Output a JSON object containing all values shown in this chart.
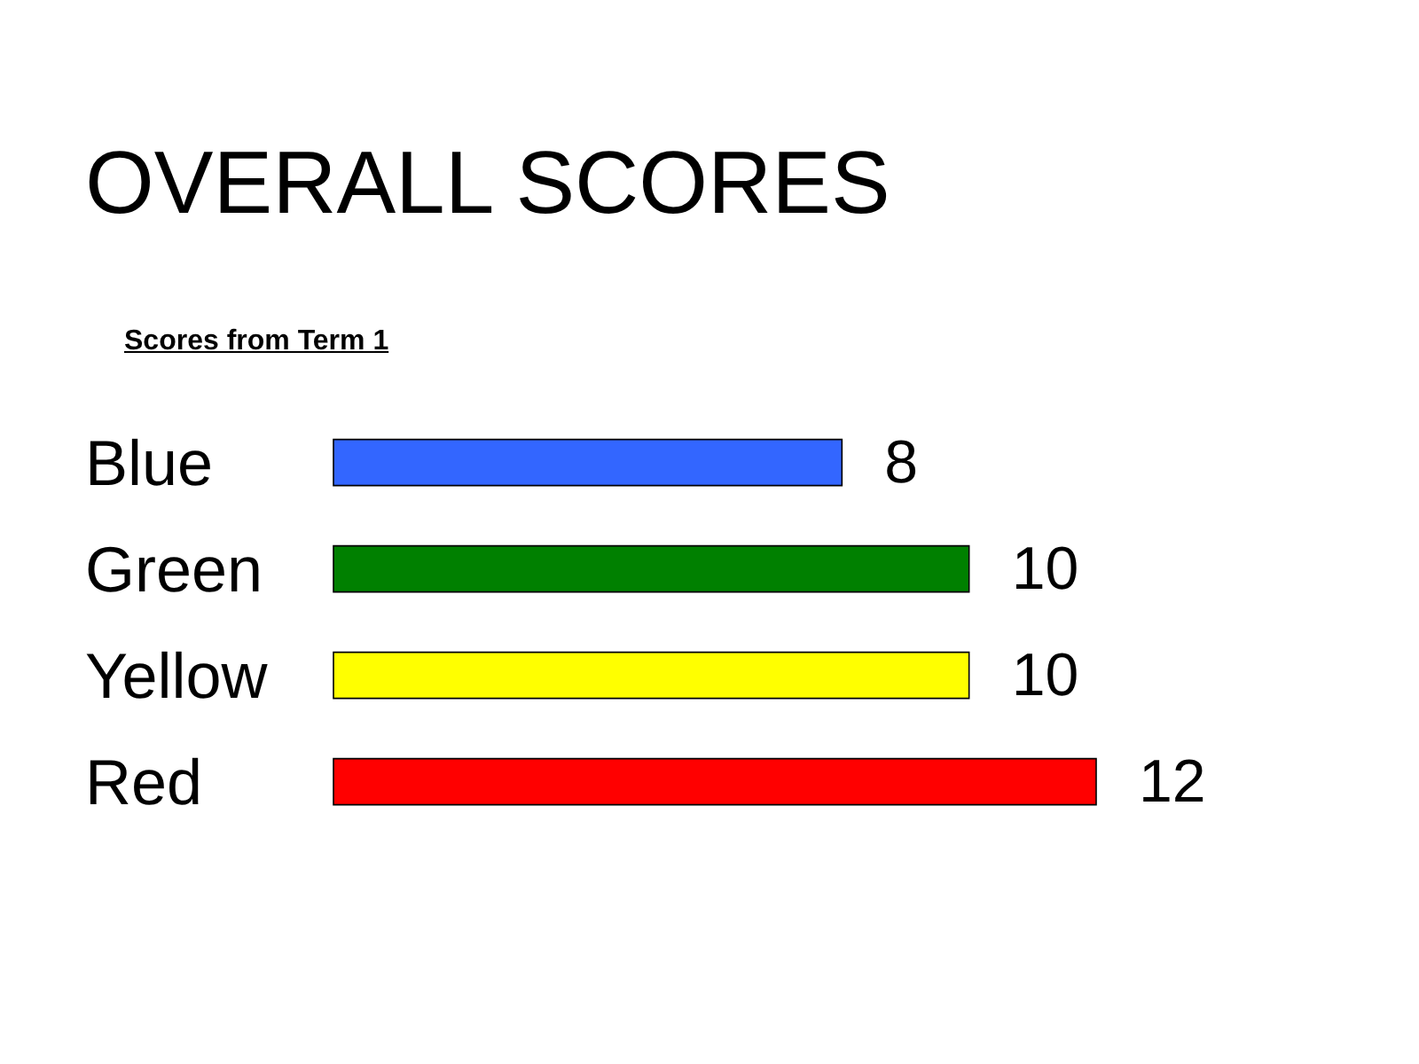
{
  "chart_data": {
    "type": "bar",
    "orientation": "horizontal",
    "title": "OVERALL SCORES",
    "subtitle": "Scores from Term 1",
    "categories": [
      "Blue",
      "Green",
      "Yellow",
      "Red"
    ],
    "values": [
      8,
      10,
      10,
      12
    ],
    "colors": [
      "#3366ff",
      "#008000",
      "#ffff00",
      "#ff0000"
    ],
    "data_labels": true
  }
}
